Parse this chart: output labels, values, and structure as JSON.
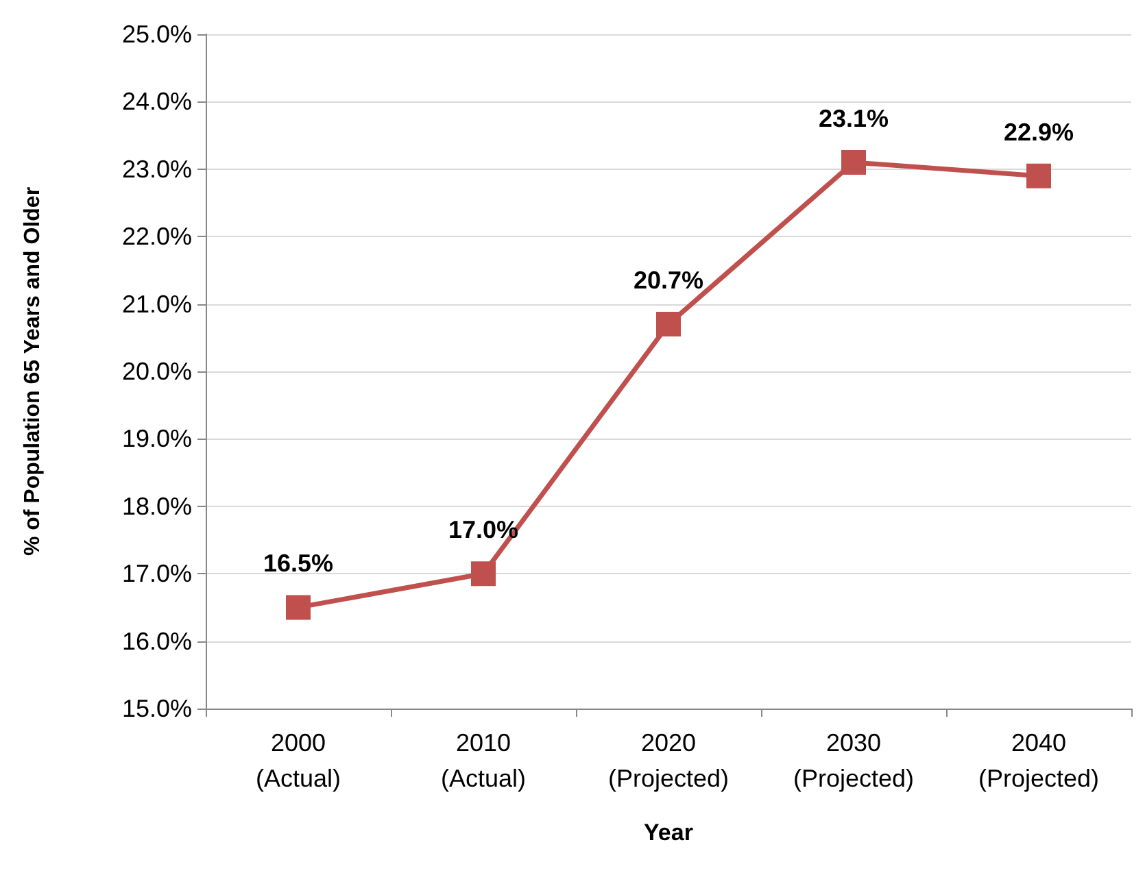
{
  "chart_data": {
    "type": "line",
    "xlabel": "Year",
    "ylabel": "% of Population 65 Years and Older",
    "categories": [
      "2000\n(Actual)",
      "2010\n(Actual)",
      "2020\n(Projected)",
      "2030\n(Projected)",
      "2040\n(Projected)"
    ],
    "series": [
      {
        "color": "#c0504d",
        "values": [
          16.5,
          17.0,
          20.7,
          23.1,
          22.9
        ],
        "value_labels": [
          "16.5%",
          "17.0%",
          "20.7%",
          "23.1%",
          "22.9%"
        ]
      }
    ],
    "ylim": [
      15,
      25
    ],
    "yticks": [
      {
        "value": 15,
        "label": "15.0%"
      },
      {
        "value": 16,
        "label": "16.0%"
      },
      {
        "value": 17,
        "label": "17.0%"
      },
      {
        "value": 18,
        "label": "18.0%"
      },
      {
        "value": 19,
        "label": "19.0%"
      },
      {
        "value": 20,
        "label": "20.0%"
      },
      {
        "value": 21,
        "label": "21.0%"
      },
      {
        "value": 22,
        "label": "22.0%"
      },
      {
        "value": 23,
        "label": "23.0%"
      },
      {
        "value": 24,
        "label": "24.0%"
      },
      {
        "value": 25,
        "label": "25.0%"
      }
    ],
    "grid": "y",
    "marker": "square",
    "line_style": "solid"
  }
}
